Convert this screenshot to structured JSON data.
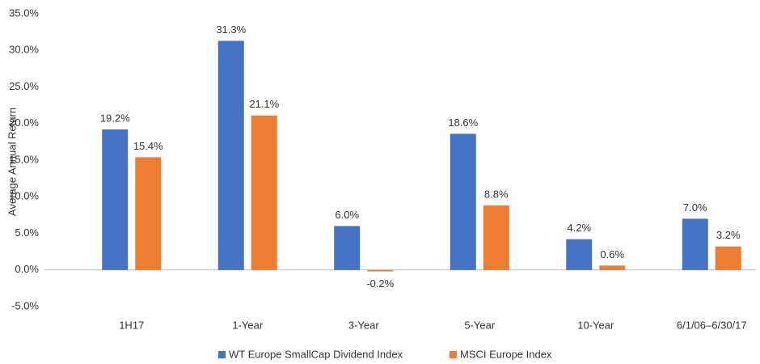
{
  "chart_data": {
    "type": "bar",
    "y_label": "Average Annual Return",
    "categories": [
      "1H17",
      "1-Year",
      "3-Year",
      "5-Year",
      "10-Year",
      "6/1/06–6/30/17"
    ],
    "series": [
      {
        "name": "WT Europe SmallCap Dividend Index",
        "color": "#4472c4",
        "values": [
          19.2,
          31.3,
          6.0,
          18.6,
          4.2,
          7.0
        ],
        "value_labels": [
          "19.2%",
          "31.3%",
          "6.0%",
          "18.6%",
          "4.2%",
          "7.0%"
        ]
      },
      {
        "name": "MSCI Europe Index",
        "color": "#ed7d31",
        "values": [
          15.4,
          21.1,
          -0.2,
          8.8,
          0.6,
          3.2
        ],
        "value_labels": [
          "15.4%",
          "21.1%",
          "-0.2%",
          "8.8%",
          "0.6%",
          "3.2%"
        ]
      }
    ],
    "ylim": [
      -5,
      35
    ],
    "yticks": [
      {
        "value": -5,
        "label": "-5.0%"
      },
      {
        "value": 0,
        "label": "0.0%"
      },
      {
        "value": 5,
        "label": "5.0%"
      },
      {
        "value": 10,
        "label": "10.0%"
      },
      {
        "value": 15,
        "label": "15.0%"
      },
      {
        "value": 20,
        "label": "20.0%"
      },
      {
        "value": 25,
        "label": "25.0%"
      },
      {
        "value": 30,
        "label": "30.0%"
      },
      {
        "value": 35,
        "label": "35.0%"
      }
    ],
    "grid": false,
    "legend": "bottom"
  }
}
